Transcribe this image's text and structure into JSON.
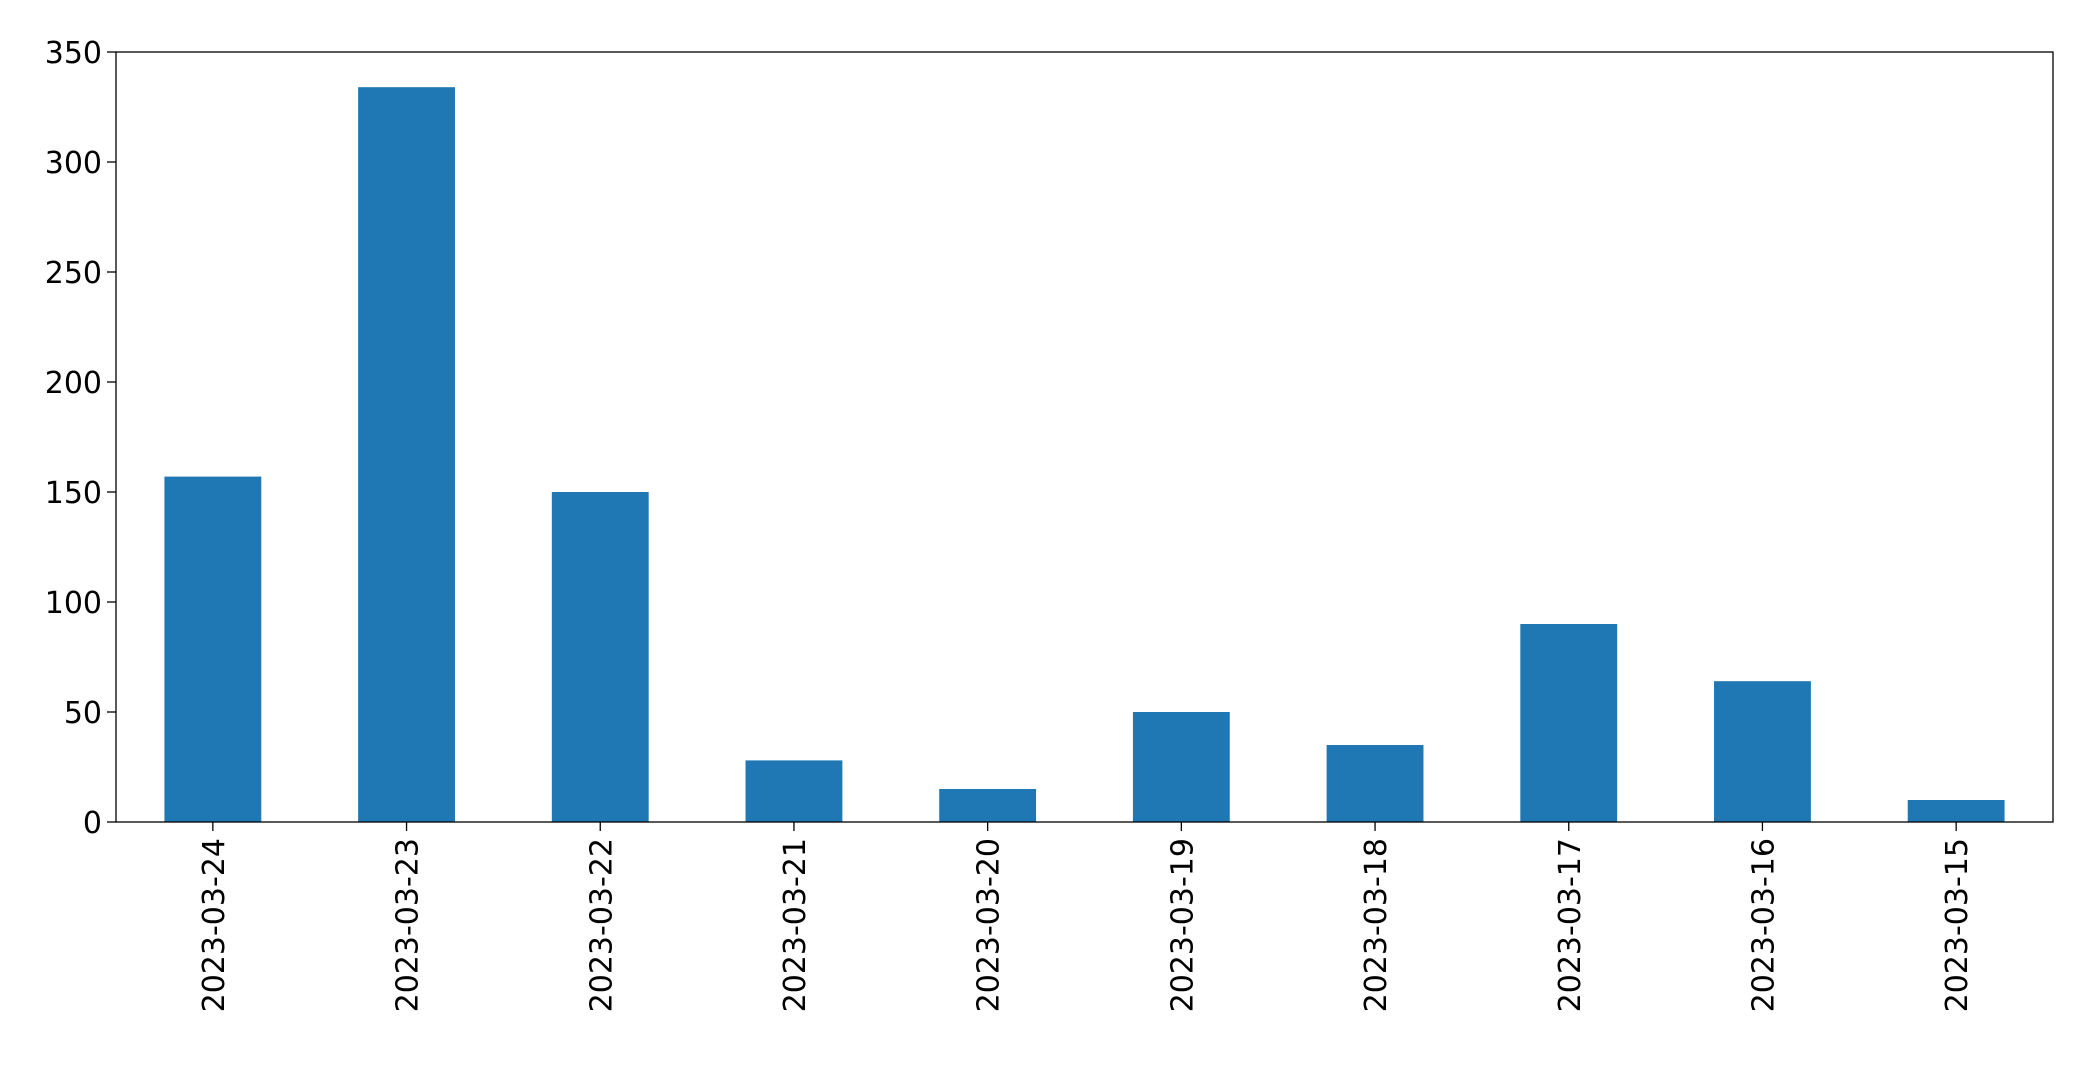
{
  "chart_data": {
    "type": "bar",
    "categories": [
      "2023-03-24",
      "2023-03-23",
      "2023-03-22",
      "2023-03-21",
      "2023-03-20",
      "2023-03-19",
      "2023-03-18",
      "2023-03-17",
      "2023-03-16",
      "2023-03-15"
    ],
    "values": [
      157,
      334,
      150,
      28,
      15,
      50,
      35,
      90,
      64,
      10
    ],
    "color": "#1f77b4",
    "ylim": [
      0,
      350
    ],
    "yticks": [
      0,
      50,
      100,
      150,
      200,
      250,
      300,
      350
    ],
    "grid": false
  }
}
